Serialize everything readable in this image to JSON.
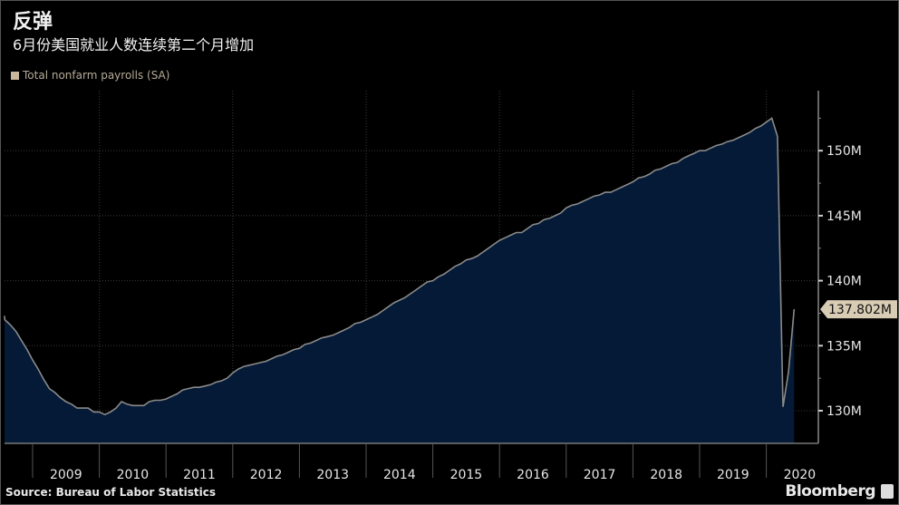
{
  "title": "反弹",
  "subtitle": "6月份美国就业人数连续第二个月增加",
  "source": "Source: Bureau of Labor Statistics",
  "brand": "Bloomberg",
  "colors": {
    "background": "#000000",
    "area_fill": "#041a36",
    "line": "#8a8a8a",
    "legend_swatch": "#c9b89b",
    "badge": "#d8ccb4"
  },
  "chart_data": {
    "type": "area",
    "title": "反弹",
    "subtitle": "6月份美国就业人数连续第二个月增加",
    "legend": {
      "position": "top-left",
      "entries": [
        "Total nonfarm payrolls (SA)"
      ]
    },
    "series": [
      {
        "name": "Total nonfarm payrolls (SA)",
        "unit": "M",
        "start": "2008-07",
        "frequency": "monthly",
        "values": [
          137.3,
          137.0,
          136.6,
          136.1,
          135.4,
          134.7,
          133.9,
          133.2,
          132.4,
          131.7,
          131.4,
          131.0,
          130.7,
          130.5,
          130.2,
          130.2,
          130.2,
          129.9,
          129.9,
          129.7,
          129.9,
          130.2,
          130.7,
          130.5,
          130.4,
          130.4,
          130.4,
          130.7,
          130.8,
          130.8,
          130.9,
          131.1,
          131.3,
          131.6,
          131.7,
          131.8,
          131.8,
          131.9,
          132.0,
          132.2,
          132.3,
          132.5,
          132.9,
          133.2,
          133.4,
          133.5,
          133.6,
          133.7,
          133.8,
          134.0,
          134.2,
          134.3,
          134.5,
          134.7,
          134.8,
          135.1,
          135.2,
          135.4,
          135.6,
          135.7,
          135.8,
          136.0,
          136.2,
          136.4,
          136.7,
          136.8,
          137.0,
          137.2,
          137.4,
          137.7,
          138.0,
          138.3,
          138.5,
          138.7,
          139.0,
          139.3,
          139.6,
          139.9,
          140.0,
          140.3,
          140.5,
          140.8,
          141.1,
          141.3,
          141.6,
          141.7,
          141.9,
          142.2,
          142.5,
          142.8,
          143.1,
          143.3,
          143.5,
          143.7,
          143.7,
          144.0,
          144.3,
          144.4,
          144.7,
          144.8,
          145.0,
          145.2,
          145.6,
          145.8,
          145.9,
          146.1,
          146.3,
          146.5,
          146.6,
          146.8,
          146.8,
          147.0,
          147.2,
          147.4,
          147.6,
          147.9,
          148.0,
          148.2,
          148.5,
          148.6,
          148.8,
          149.0,
          149.1,
          149.4,
          149.6,
          149.8,
          150.0,
          150.0,
          150.2,
          150.4,
          150.5,
          150.7,
          150.8,
          151.0,
          151.2,
          151.4,
          151.7,
          151.9,
          152.2,
          152.5,
          151.1,
          130.3,
          133.0,
          137.802
        ]
      }
    ],
    "last_value_label": "137.802M",
    "x_tick_labels": [
      "2009",
      "2010",
      "2011",
      "2012",
      "2013",
      "2014",
      "2015",
      "2016",
      "2017",
      "2018",
      "2019",
      "2020"
    ],
    "y_ticks": [
      130,
      135,
      140,
      145,
      150
    ],
    "y_tick_labels": [
      "130M",
      "135M",
      "140M",
      "145M",
      "150M"
    ],
    "ylim": [
      127.5,
      154.6
    ],
    "xlim": [
      "2008-07",
      "2020-07"
    ],
    "y_axis_position": "right",
    "grid": true
  }
}
